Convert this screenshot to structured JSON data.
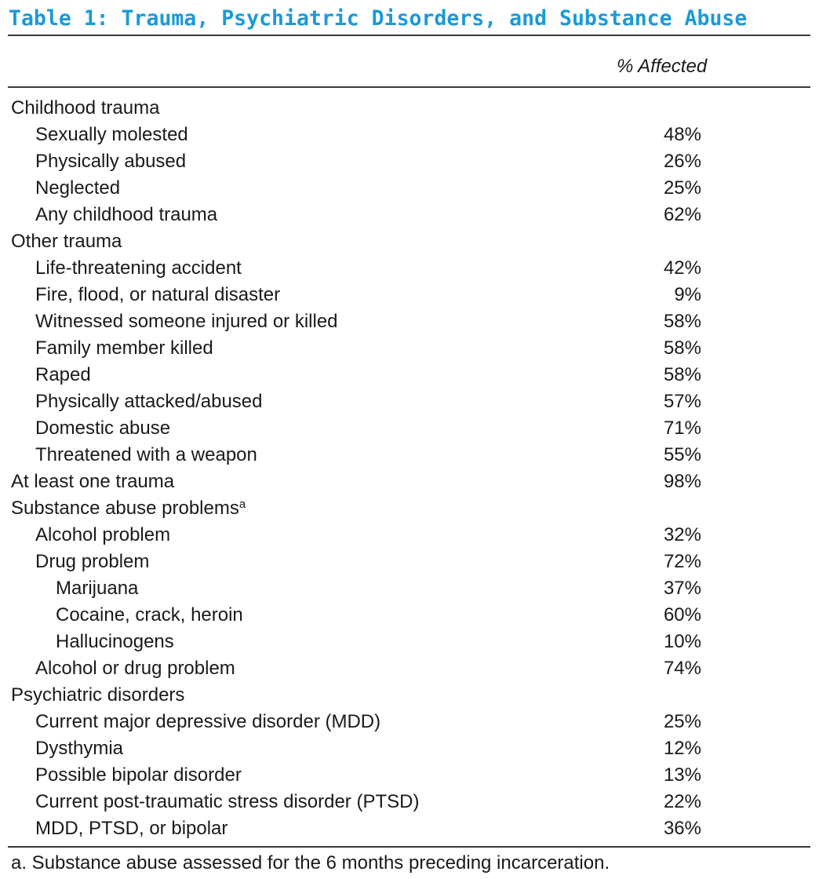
{
  "table": {
    "title": "Table 1: Trauma, Psychiatric Disorders, and Substance Abuse",
    "column_header": "% Affected",
    "rows": [
      {
        "label": "Childhood trauma",
        "value": "",
        "level": 0,
        "sup": ""
      },
      {
        "label": "Sexually molested",
        "value": "48%",
        "level": 1,
        "sup": ""
      },
      {
        "label": "Physically abused",
        "value": "26%",
        "level": 1,
        "sup": ""
      },
      {
        "label": "Neglected",
        "value": "25%",
        "level": 1,
        "sup": ""
      },
      {
        "label": "Any childhood trauma",
        "value": "62%",
        "level": 1,
        "sup": ""
      },
      {
        "label": "Other trauma",
        "value": "",
        "level": 0,
        "sup": ""
      },
      {
        "label": "Life-threatening accident",
        "value": "42%",
        "level": 1,
        "sup": ""
      },
      {
        "label": "Fire, flood, or natural disaster",
        "value": "9%",
        "level": 1,
        "sup": ""
      },
      {
        "label": "Witnessed someone injured or killed",
        "value": "58%",
        "level": 1,
        "sup": ""
      },
      {
        "label": "Family member killed",
        "value": "58%",
        "level": 1,
        "sup": ""
      },
      {
        "label": "Raped",
        "value": "58%",
        "level": 1,
        "sup": ""
      },
      {
        "label": "Physically attacked/abused",
        "value": "57%",
        "level": 1,
        "sup": ""
      },
      {
        "label": "Domestic abuse",
        "value": "71%",
        "level": 1,
        "sup": ""
      },
      {
        "label": "Threatened with a weapon",
        "value": "55%",
        "level": 1,
        "sup": ""
      },
      {
        "label": "At least one trauma",
        "value": "98%",
        "level": 0,
        "sup": ""
      },
      {
        "label": "Substance abuse problems",
        "value": "",
        "level": 0,
        "sup": "a"
      },
      {
        "label": "Alcohol problem",
        "value": "32%",
        "level": 1,
        "sup": ""
      },
      {
        "label": "Drug problem",
        "value": "72%",
        "level": 1,
        "sup": ""
      },
      {
        "label": "Marijuana",
        "value": "37%",
        "level": 2,
        "sup": ""
      },
      {
        "label": "Cocaine, crack, heroin",
        "value": "60%",
        "level": 2,
        "sup": ""
      },
      {
        "label": "Hallucinogens",
        "value": "10%",
        "level": 2,
        "sup": ""
      },
      {
        "label": "Alcohol or drug problem",
        "value": "74%",
        "level": 1,
        "sup": ""
      },
      {
        "label": "Psychiatric disorders",
        "value": "",
        "level": 0,
        "sup": ""
      },
      {
        "label": "Current major depressive disorder (MDD)",
        "value": "25%",
        "level": 1,
        "sup": ""
      },
      {
        "label": "Dysthymia",
        "value": "12%",
        "level": 1,
        "sup": ""
      },
      {
        "label": "Possible bipolar disorder",
        "value": "13%",
        "level": 1,
        "sup": ""
      },
      {
        "label": "Current post-traumatic stress disorder (PTSD)",
        "value": "22%",
        "level": 1,
        "sup": ""
      },
      {
        "label": "MDD, PTSD, or bipolar",
        "value": "36%",
        "level": 1,
        "sup": ""
      }
    ],
    "footnote": "a. Substance abuse assessed for the 6 months preceding incarceration."
  },
  "colors": {
    "title": "#1a9ad7",
    "text": "#1a1a1a",
    "rule": "#3a3a3a"
  }
}
